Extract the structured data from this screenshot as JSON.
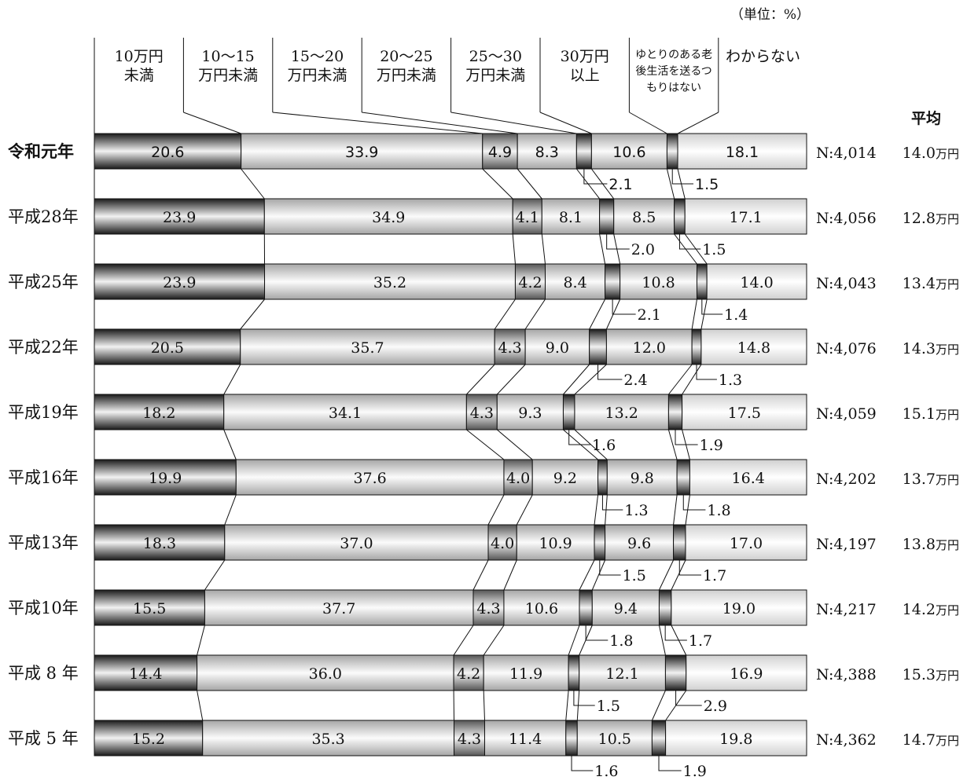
{
  "chart_data": {
    "type": "stacked-bar-horizontal",
    "unit_label": "（単位：%）",
    "average_header": "平均",
    "categories": [
      {
        "label_lines": [
          "10万円",
          "未満"
        ]
      },
      {
        "label_lines": [
          "10〜15",
          "万円未満"
        ]
      },
      {
        "label_lines": [
          "15〜20",
          "万円未満"
        ]
      },
      {
        "label_lines": [
          "20〜25",
          "万円未満"
        ]
      },
      {
        "label_lines": [
          "25〜30",
          "万円未満"
        ]
      },
      {
        "label_lines": [
          "30万円",
          "以上"
        ]
      },
      {
        "label_lines": [
          "ゆとりのある老",
          "後生活を送るつ",
          "もりはない"
        ]
      },
      {
        "label_lines": [
          "わからない"
        ]
      }
    ],
    "rows": [
      {
        "label": "令和元年",
        "values": [
          20.6,
          33.9,
          4.9,
          8.3,
          2.1,
          10.6,
          1.5,
          18.1
        ],
        "labels": [
          "20.6",
          "33.9",
          "4.9",
          "8.3",
          "2.1",
          "10.6",
          "1.5",
          "18.1"
        ],
        "n": "N:4,014",
        "avg": "14.0",
        "avg_unit": "万円"
      },
      {
        "label": "平成28年",
        "values": [
          23.9,
          34.9,
          4.1,
          8.1,
          2.0,
          8.5,
          1.5,
          17.1
        ],
        "labels": [
          "23.9",
          "34.9",
          "4.1",
          "8.1",
          "2.0",
          "8.5",
          "1.5",
          "17.1"
        ],
        "n": "N:4,056",
        "avg": "12.8",
        "avg_unit": "万円"
      },
      {
        "label": "平成25年",
        "values": [
          23.9,
          35.2,
          4.2,
          8.4,
          2.1,
          10.8,
          1.4,
          14.0
        ],
        "labels": [
          "23.9",
          "35.2",
          "4.2",
          "8.4",
          "2.1",
          "10.8",
          "1.4",
          "14.0"
        ],
        "n": "N:4,043",
        "avg": "13.4",
        "avg_unit": "万円"
      },
      {
        "label": "平成22年",
        "values": [
          20.5,
          35.7,
          4.3,
          9.0,
          2.4,
          12.0,
          1.3,
          14.8
        ],
        "labels": [
          "20.5",
          "35.7",
          "4.3",
          "9.0",
          "2.4",
          "12.0",
          "1.3",
          "14.8"
        ],
        "n": "N:4,076",
        "avg": "14.3",
        "avg_unit": "万円"
      },
      {
        "label": "平成19年",
        "values": [
          18.2,
          34.1,
          4.3,
          9.3,
          1.6,
          13.2,
          1.9,
          17.5
        ],
        "labels": [
          "18.2",
          "34.1",
          "4.3",
          "9.3",
          "1.6",
          "13.2",
          "1.9",
          "17.5"
        ],
        "n": "N:4,059",
        "avg": "15.1",
        "avg_unit": "万円"
      },
      {
        "label": "平成16年",
        "values": [
          19.9,
          37.6,
          4.0,
          9.2,
          1.3,
          9.8,
          1.8,
          16.4
        ],
        "labels": [
          "19.9",
          "37.6",
          "4.0",
          "9.2",
          "1.3",
          "9.8",
          "1.8",
          "16.4"
        ],
        "n": "N:4,202",
        "avg": "13.7",
        "avg_unit": "万円"
      },
      {
        "label": "平成13年",
        "values": [
          18.3,
          37.0,
          4.0,
          10.9,
          1.5,
          9.6,
          1.7,
          17.0
        ],
        "labels": [
          "18.3",
          "37.0",
          "4.0",
          "10.9",
          "1.5",
          "9.6",
          "1.7",
          "17.0"
        ],
        "n": "N:4,197",
        "avg": "13.8",
        "avg_unit": "万円"
      },
      {
        "label": "平成10年",
        "values": [
          15.5,
          37.7,
          4.3,
          10.6,
          1.8,
          9.4,
          1.7,
          19.0
        ],
        "labels": [
          "15.5",
          "37.7",
          "4.3",
          "10.6",
          "1.8",
          "9.4",
          "1.7",
          "19.0"
        ],
        "n": "N:4,217",
        "avg": "14.2",
        "avg_unit": "万円"
      },
      {
        "label": "平成 8 年",
        "values": [
          14.4,
          36.0,
          4.2,
          11.9,
          1.5,
          12.1,
          2.9,
          16.9
        ],
        "labels": [
          "14.4",
          "36.0",
          "4.2",
          "11.9",
          "1.5",
          "12.1",
          "2.9",
          "16.9"
        ],
        "n": "N:4,388",
        "avg": "15.3",
        "avg_unit": "万円"
      },
      {
        "label": "平成 5 年",
        "values": [
          15.2,
          35.3,
          4.3,
          11.4,
          1.6,
          10.5,
          1.9,
          19.8
        ],
        "labels": [
          "15.2",
          "35.3",
          "4.3",
          "11.4",
          "1.6",
          "10.5",
          "1.9",
          "19.8"
        ],
        "n": "N:4,362",
        "avg": "14.7",
        "avg_unit": "万円"
      }
    ],
    "xlim": [
      0,
      100
    ]
  }
}
